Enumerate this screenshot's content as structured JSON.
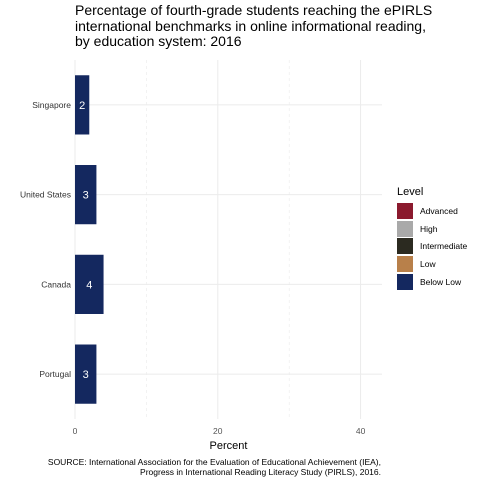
{
  "chart_data": {
    "type": "bar",
    "orientation": "horizontal",
    "title": "Percentage of fourth-grade students reaching the ePIRLS\ninternational benchmarks in online informational reading,\nby education system: 2016",
    "categories": [
      "Singapore",
      "United States",
      "Canada",
      "Portugal"
    ],
    "series": [
      {
        "name": "Below Low",
        "values": [
          2,
          3,
          4,
          3
        ],
        "color": "#14285f"
      }
    ],
    "data_labels": [
      "2",
      "3",
      "4",
      "3"
    ],
    "xlabel": "Percent",
    "ylabel": "",
    "xlim": [
      0,
      43
    ],
    "xticks": [
      0,
      20,
      40
    ],
    "grid": true,
    "legend": {
      "title": "Level",
      "position": "right",
      "items": [
        {
          "label": "Advanced",
          "color": "#8b1a2e"
        },
        {
          "label": "High",
          "color": "#a9a9a9"
        },
        {
          "label": "Intermediate",
          "color": "#2b2a20"
        },
        {
          "label": "Low",
          "color": "#b8804a"
        },
        {
          "label": "Below Low",
          "color": "#14285f"
        }
      ]
    },
    "source": "SOURCE: International Association for the Evaluation of Educational Achievement (IEA),\nProgress in International Reading Literacy Study (PIRLS), 2016."
  }
}
